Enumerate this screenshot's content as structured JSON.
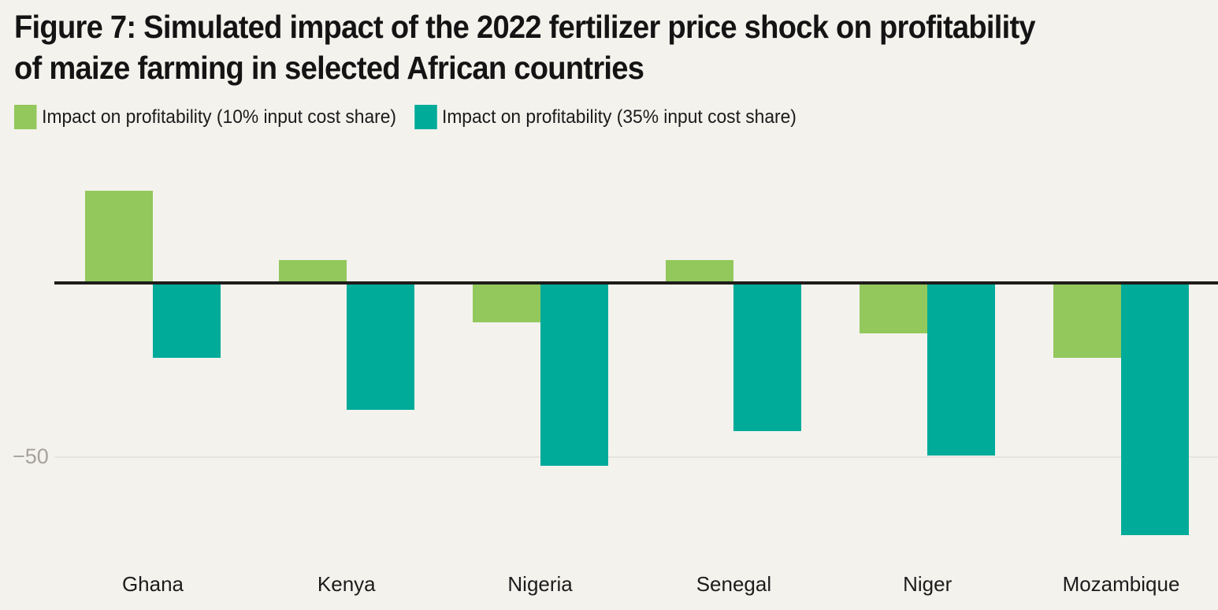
{
  "figure": {
    "title": "Figure 7: Simulated impact of the 2022 fertilizer price shock on profitability of maize farming in selected African countries",
    "title_lines": [
      "Figure 7: Simulated impact of the 2022 fertilizer price shock on profitability",
      "of maize farming in selected African countries"
    ]
  },
  "colors": {
    "background": "#f4f2ed",
    "series_10pct": "#92c85c",
    "series_35pct": "#00ab99",
    "zero_line": "#1f1d1b",
    "gridline": "#e6e4de",
    "tick_label": "#a5a29b",
    "text": "#141414"
  },
  "chart_data": {
    "type": "bar",
    "title": "Figure 7: Simulated impact of the 2022 fertilizer price shock on profitability of maize farming in selected African countries",
    "categories": [
      "Ghana",
      "Kenya",
      "Nigeria",
      "Senegal",
      "Niger",
      "Mozambique"
    ],
    "series": [
      {
        "name": "Impact on profitability (10% input cost share)",
        "color": "#92c85c",
        "values": [
          26,
          6,
          -11,
          6,
          -14,
          -21
        ]
      },
      {
        "name": "Impact on profitability (35% input cost share)",
        "color": "#00ab99",
        "values": [
          -21,
          -36,
          -52,
          -42,
          -49,
          -72
        ]
      }
    ],
    "xlabel": "",
    "ylabel": "",
    "yticks": [
      {
        "value": -50,
        "label": "−50"
      }
    ],
    "ylim": [
      -80,
      35
    ],
    "grid": "single horizontal gridline at -50, bold zero baseline",
    "legend_position": "top-left"
  }
}
